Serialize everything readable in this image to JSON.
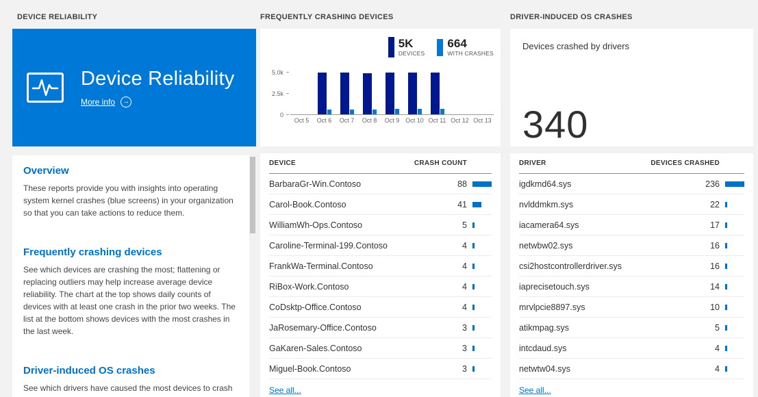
{
  "colors": {
    "accent": "#0072c6",
    "tile": "#0078d7",
    "bar_dark": "#00188f",
    "bar_light": "#0078d7",
    "table_bar": "#0072c6",
    "big_number": "#303030"
  },
  "icons": {
    "arrow_right": "→"
  },
  "left": {
    "header": "DEVICE RELIABILITY",
    "tile": {
      "title": "Device Reliability",
      "more_info": "More info"
    },
    "sections": [
      {
        "heading": "Overview",
        "body": "These reports provide you with insights into operating system kernel crashes (blue screens) in your organization so that you can take actions to reduce them."
      },
      {
        "heading": "Frequently crashing devices",
        "body": "See which devices are crashing the most; flattening or replacing outliers may help increase average device reliability. The chart at the top shows daily counts of devices with at least one crash in the prior two weeks. The list at the bottom shows devices with the most crashes in the last week."
      },
      {
        "heading": "Driver-induced OS crashes",
        "body": "See which drivers have caused the most devices to crash in"
      }
    ]
  },
  "middle": {
    "header": "FREQUENTLY CRASHING DEVICES",
    "legend": [
      {
        "value": "5K",
        "label": "DEVICES"
      },
      {
        "value": "664",
        "label": "WITH CRASHES"
      }
    ],
    "table": {
      "headers": [
        "DEVICE",
        "CRASH COUNT"
      ],
      "rows": [
        {
          "name": "BarbaraGr-Win.Contoso",
          "value": 88
        },
        {
          "name": "Carol-Book.Contoso",
          "value": 41
        },
        {
          "name": "WilliamWh-Ops.Contoso",
          "value": 5
        },
        {
          "name": "Caroline-Terminal-199.Contoso",
          "value": 4
        },
        {
          "name": "FrankWa-Terminal.Contoso",
          "value": 4
        },
        {
          "name": "RiBox-Work.Contoso",
          "value": 4
        },
        {
          "name": "CoDsktp-Office.Contoso",
          "value": 4
        },
        {
          "name": "JaRosemary-Office.Contoso",
          "value": 3
        },
        {
          "name": "GaKaren-Sales.Contoso",
          "value": 3
        },
        {
          "name": "Miguel-Book.Contoso",
          "value": 3
        }
      ],
      "see_all": "See all..."
    }
  },
  "right": {
    "header": "DRIVER-INDUCED OS CRASHES",
    "subtitle": "Devices crashed by drivers",
    "big_number": "340",
    "table": {
      "headers": [
        "DRIVER",
        "DEVICES CRASHED"
      ],
      "rows": [
        {
          "name": "igdkmd64.sys",
          "value": 236
        },
        {
          "name": "nvlddmkm.sys",
          "value": 22
        },
        {
          "name": "iacamera64.sys",
          "value": 17
        },
        {
          "name": "netwbw02.sys",
          "value": 16
        },
        {
          "name": "csi2hostcontrollerdriver.sys",
          "value": 16
        },
        {
          "name": "iaprecisetouch.sys",
          "value": 14
        },
        {
          "name": "mrvlpcie8897.sys",
          "value": 10
        },
        {
          "name": "atikmpag.sys",
          "value": 5
        },
        {
          "name": "intcdaud.sys",
          "value": 4
        },
        {
          "name": "netwtw04.sys",
          "value": 4
        }
      ],
      "see_all": "See all..."
    }
  },
  "chart_data": {
    "type": "bar",
    "title": "",
    "xlabel": "",
    "ylabel": "",
    "x": [
      "Oct 5",
      "Oct 6",
      "Oct 7",
      "Oct 8",
      "Oct 9",
      "Oct 10",
      "Oct 11",
      "Oct 12",
      "Oct 13"
    ],
    "series": [
      {
        "name": "DEVICES",
        "color": "#00188f",
        "values": [
          0,
          4900,
          4900,
          4850,
          4900,
          4950,
          4950,
          0,
          0
        ]
      },
      {
        "name": "WITH CRASHES",
        "color": "#0078d7",
        "values": [
          0,
          600,
          600,
          580,
          620,
          650,
          660,
          0,
          0
        ]
      }
    ],
    "ylim": [
      0,
      5500
    ],
    "yticks": [
      {
        "value": 0,
        "label": "0"
      },
      {
        "value": 2500,
        "label": "2.5k"
      },
      {
        "value": 5000,
        "label": "5.0k"
      }
    ],
    "grid": false,
    "legend_position": "top-right"
  }
}
